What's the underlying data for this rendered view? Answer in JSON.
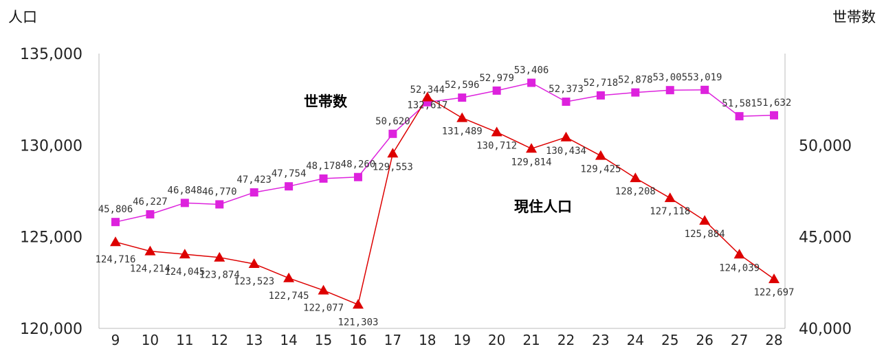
{
  "chart_data": {
    "type": "line",
    "left_axis_title": "人口",
    "right_axis_title": "世帯数",
    "x": [
      "9",
      "10",
      "11",
      "12",
      "13",
      "14",
      "15",
      "16",
      "17",
      "18",
      "19",
      "20",
      "21",
      "22",
      "23",
      "24",
      "25",
      "26",
      "27",
      "28"
    ],
    "y_left": {
      "ylim": [
        120000,
        135000
      ],
      "ticks": [
        120000,
        125000,
        130000,
        135000
      ],
      "tick_labels": [
        "120,000",
        "125,000",
        "130,000",
        "135,000"
      ]
    },
    "y_right": {
      "ylim": [
        40000,
        55000
      ],
      "ticks": [
        40000,
        45000,
        50000
      ],
      "tick_labels": [
        "40,000",
        "45,000",
        "50,000"
      ]
    },
    "grid": false,
    "series": [
      {
        "name": "世帯数",
        "axis": "right",
        "color": "#dd22dd",
        "marker": "square",
        "values": [
          45806,
          46227,
          46848,
          46770,
          47423,
          47754,
          48178,
          48260,
          50620,
          52344,
          52596,
          52979,
          53406,
          52373,
          52718,
          52878,
          53005,
          53019,
          51581,
          51632
        ],
        "labels": [
          "45,806",
          "46,227",
          "46,848",
          "46,770",
          "47,423",
          "47,754",
          "48,178",
          "48,260",
          "50,620",
          "52,344",
          "52,596",
          "52,979",
          "53,406",
          "52,373",
          "52,718",
          "52,878",
          "53,005",
          "53,019",
          "51,581",
          "51,632"
        ]
      },
      {
        "name": "現住人口",
        "axis": "left",
        "color": "#dd0000",
        "marker": "triangle",
        "values": [
          124716,
          124214,
          124045,
          123874,
          123523,
          122745,
          122077,
          121303,
          129553,
          132617,
          131489,
          130712,
          129814,
          130434,
          129425,
          128208,
          127118,
          125884,
          124039,
          122697
        ],
        "labels": [
          "124,716",
          "124,214",
          "124,045",
          "123,874",
          "123,523",
          "122,745",
          "122,077",
          "121,303",
          "129,553",
          "132,617",
          "131,489",
          "130,712",
          "129,814",
          "130,434",
          "129,425",
          "128,208",
          "127,118",
          "125,884",
          "124,039",
          "122,697"
        ]
      }
    ]
  }
}
